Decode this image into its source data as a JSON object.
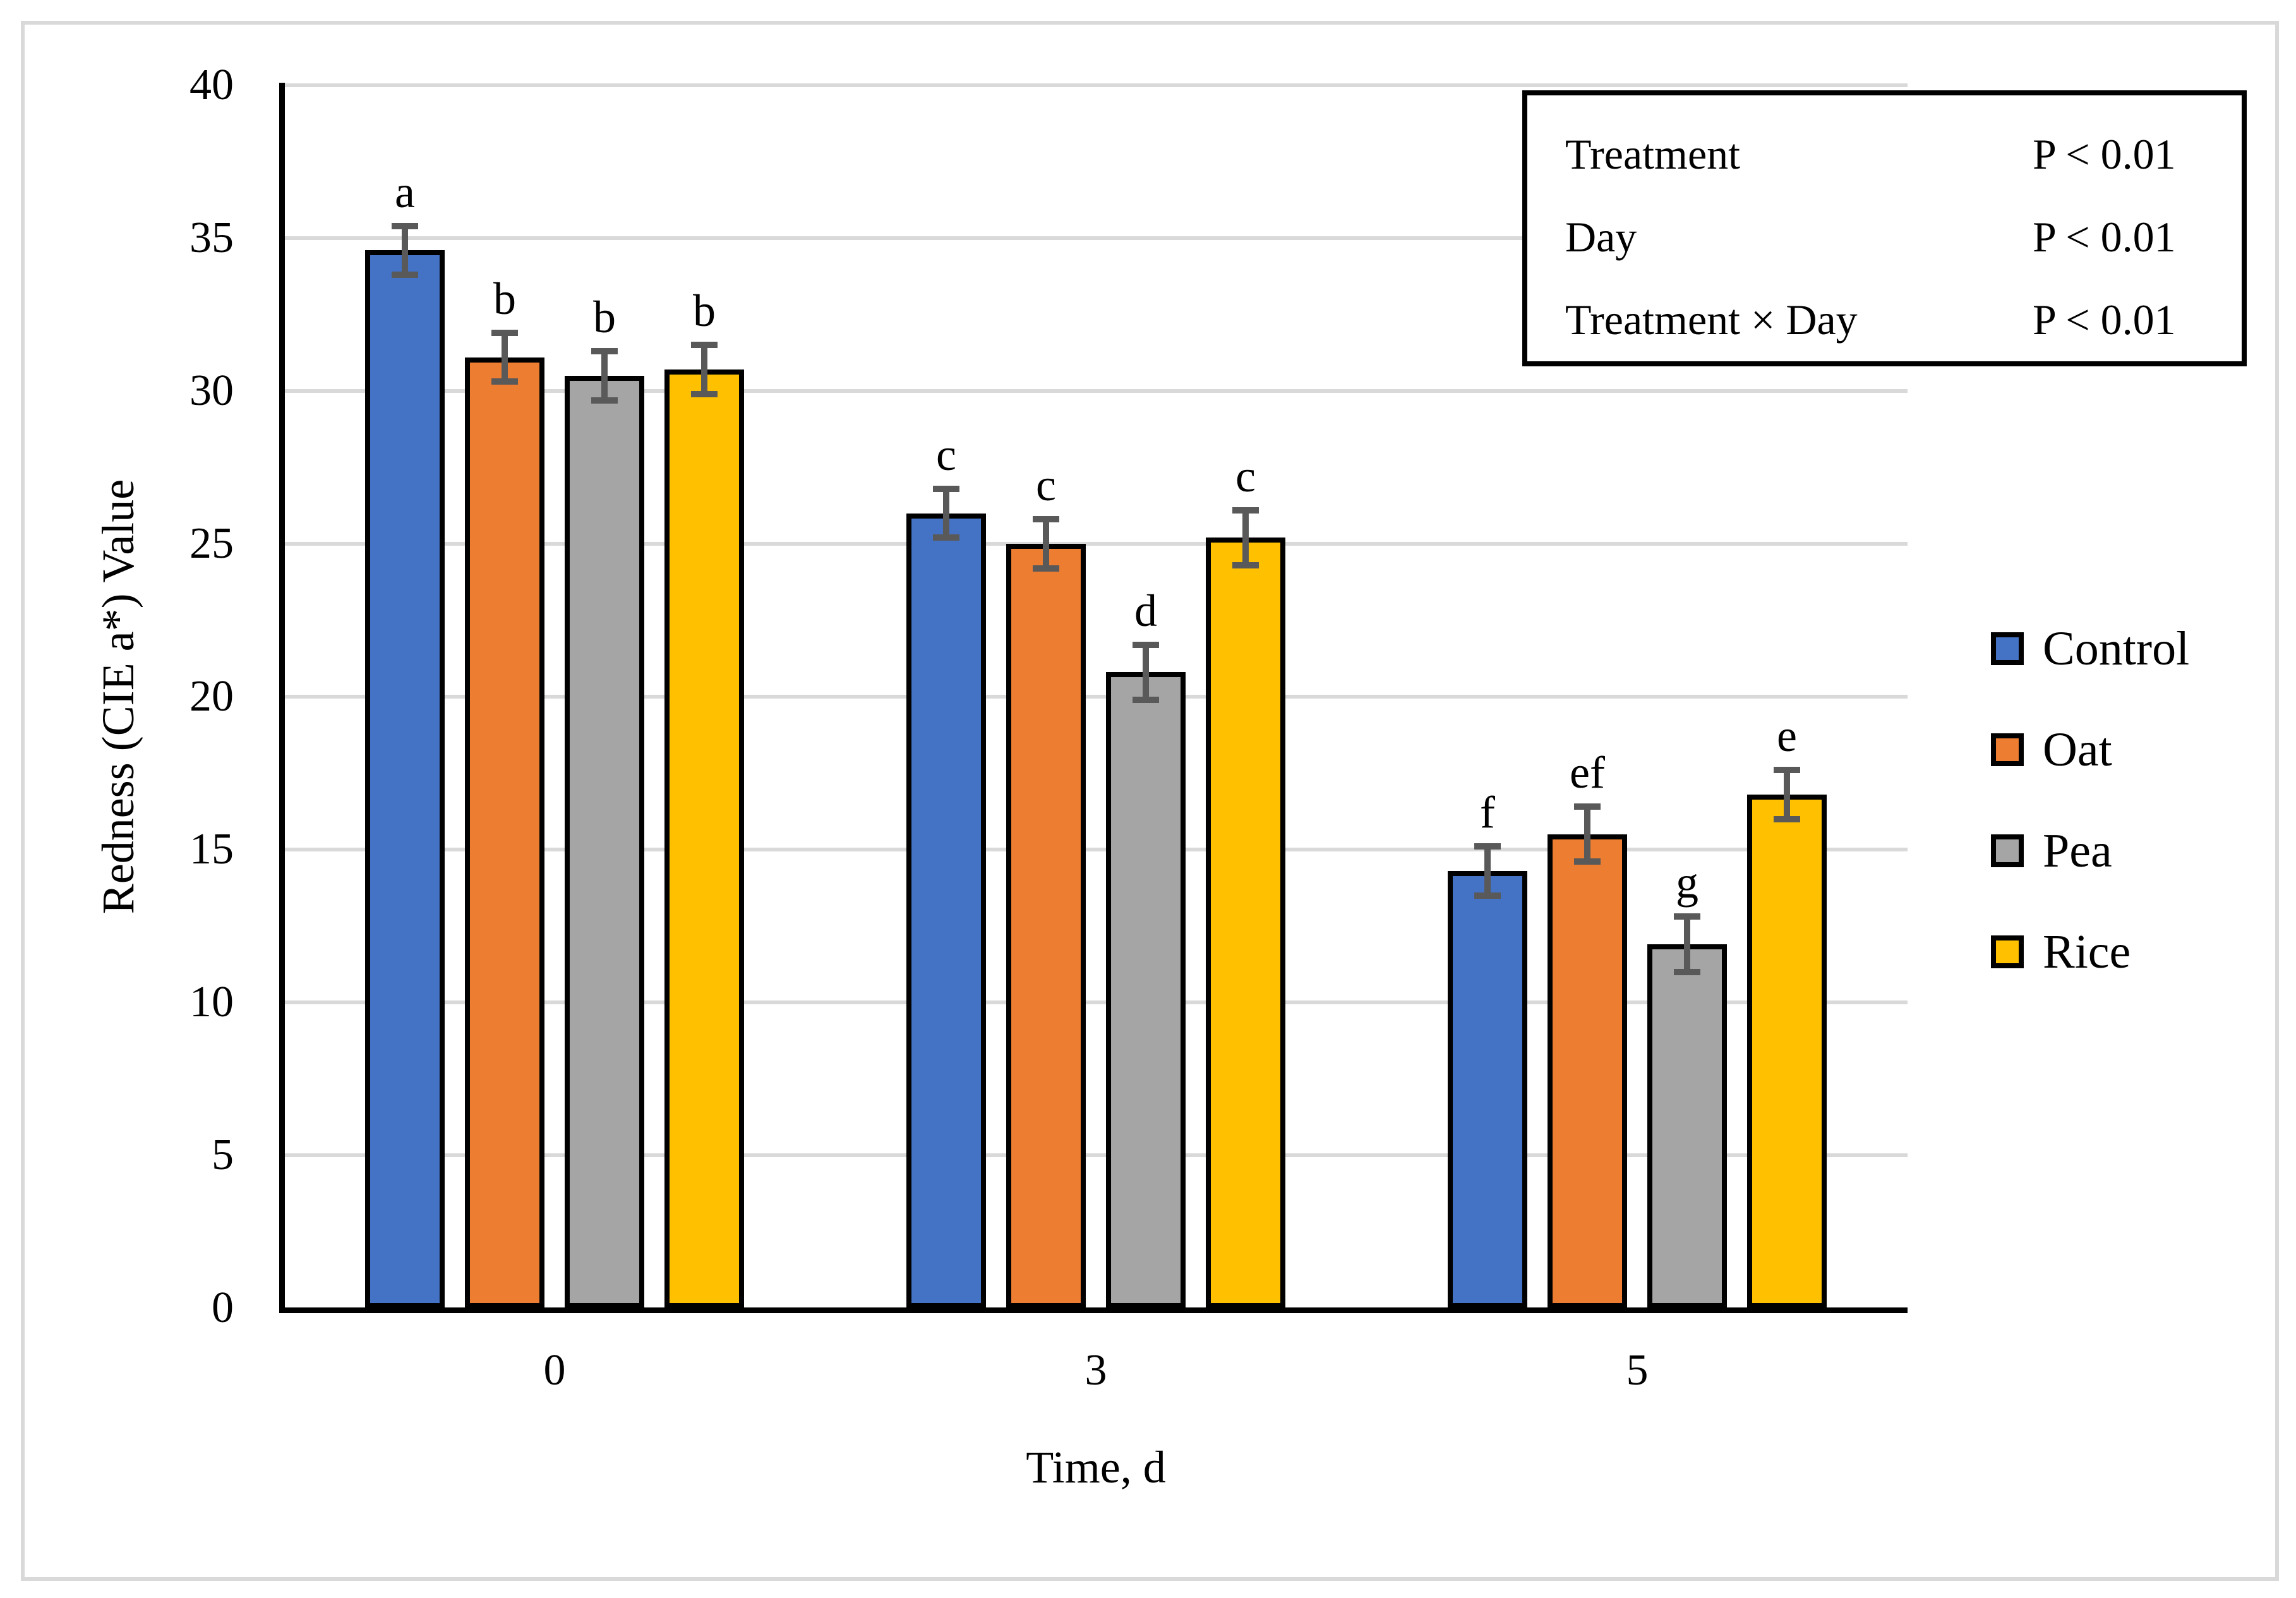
{
  "chart_data": {
    "type": "bar",
    "title": "",
    "categories": [
      "0",
      "3",
      "5"
    ],
    "series": [
      {
        "name": "Control",
        "color": "#4472C4",
        "values": [
          34.6,
          26.0,
          14.3
        ],
        "errors": [
          0.8,
          0.8,
          0.8
        ],
        "letters": [
          "a",
          "c",
          "f"
        ]
      },
      {
        "name": "Oat",
        "color": "#ED7D31",
        "values": [
          31.1,
          25.0,
          15.5
        ],
        "errors": [
          0.8,
          0.8,
          0.9
        ],
        "letters": [
          "b",
          "c",
          "ef"
        ]
      },
      {
        "name": "Pea",
        "color": "#A5A5A5",
        "values": [
          30.5,
          20.8,
          11.9
        ],
        "errors": [
          0.8,
          0.9,
          0.9
        ],
        "letters": [
          "b",
          "d",
          "g"
        ]
      },
      {
        "name": "Rice",
        "color": "#FFC000",
        "values": [
          30.7,
          25.2,
          16.8
        ],
        "errors": [
          0.8,
          0.9,
          0.8
        ],
        "letters": [
          "b",
          "c",
          "e"
        ]
      }
    ],
    "xlabel": "Time, d",
    "ylabel": "Redness (CIE a*) Value",
    "ylim": [
      0,
      40
    ],
    "ytick_step": 5,
    "grid": true,
    "legend_position": "right",
    "error_bar_color": "#595959",
    "gridline_color": "#D9D9D9",
    "bar_border_color": "#000000"
  },
  "stats_box": {
    "rows": [
      {
        "label": "Treatment",
        "value": "P < 0.01"
      },
      {
        "label": "Day",
        "value": "P < 0.01"
      },
      {
        "label": "Treatment × Day",
        "value": "P < 0.01"
      }
    ]
  },
  "legend": {
    "items": [
      {
        "label": "Control"
      },
      {
        "label": "Oat"
      },
      {
        "label": "Pea"
      },
      {
        "label": "Rice"
      }
    ]
  }
}
